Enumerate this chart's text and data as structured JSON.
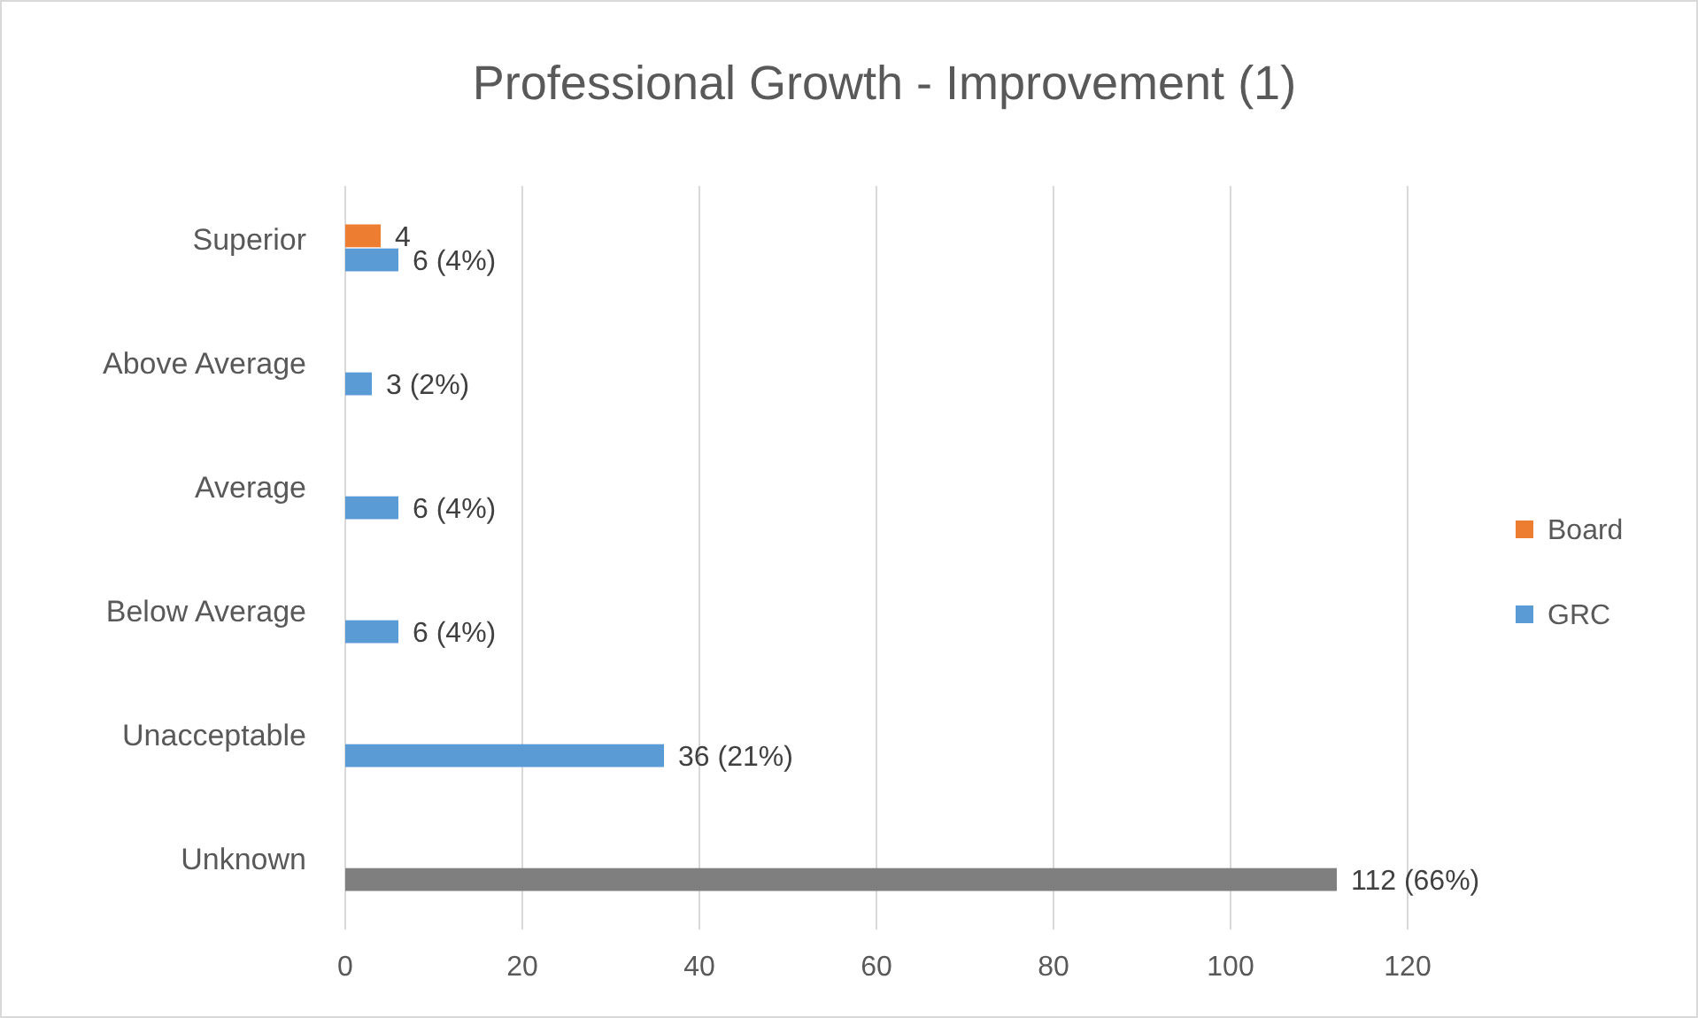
{
  "chart_data": {
    "type": "bar",
    "orientation": "horizontal",
    "title": "Professional Growth - Improvement (1)",
    "categories": [
      "Superior",
      "Above Average",
      "Average",
      "Below Average",
      "Unacceptable",
      "Unknown"
    ],
    "series": [
      {
        "name": "Board",
        "color": "#ed7d31",
        "values": [
          4,
          null,
          null,
          null,
          null,
          null
        ],
        "value_labels": [
          "4",
          null,
          null,
          null,
          null,
          null
        ]
      },
      {
        "name": "GRC",
        "color": "#5b9bd5",
        "colors": [
          "#5b9bd5",
          "#5b9bd5",
          "#5b9bd5",
          "#5b9bd5",
          "#5b9bd5",
          "#7f7f7f"
        ],
        "values": [
          6,
          3,
          6,
          6,
          36,
          112
        ],
        "value_labels": [
          "6 (4%)",
          "3 (2%)",
          "6 (4%)",
          "6 (4%)",
          "36 (21%)",
          "112 (66%)"
        ]
      }
    ],
    "xlim": [
      0,
      120
    ],
    "xticks": [
      0,
      20,
      40,
      60,
      80,
      100,
      120
    ],
    "grid": "x",
    "legend": "right"
  }
}
